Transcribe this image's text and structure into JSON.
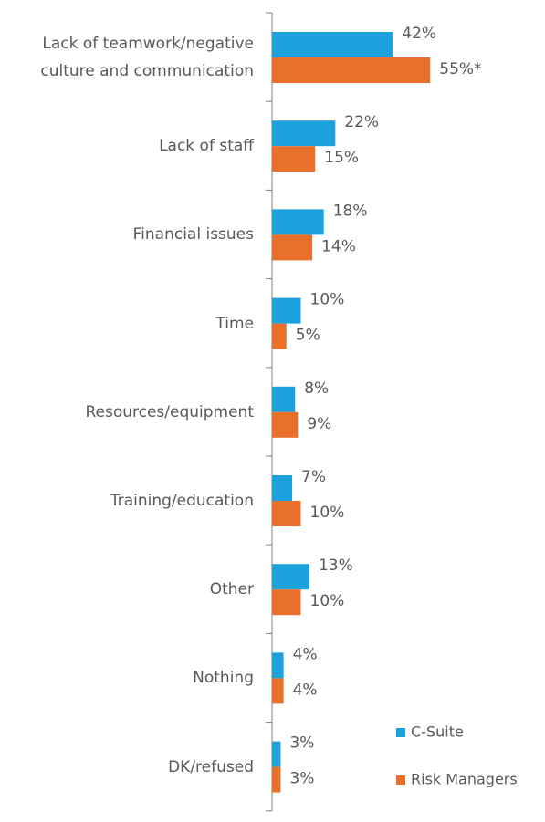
{
  "chart_data": {
    "type": "bar",
    "orientation": "horizontal",
    "categories": [
      "Lack of teamwork/negative\nculture and communication",
      "Lack of staff",
      "Financial issues",
      "Time",
      "Resources/equipment",
      "Training/education",
      "Other",
      "Nothing",
      "DK/refused"
    ],
    "series": [
      {
        "name": "C-Suite",
        "color": "#1ba1dc",
        "values": [
          42,
          22,
          18,
          10,
          8,
          7,
          13,
          4,
          3
        ],
        "value_labels": [
          "42%",
          "22%",
          "18%",
          "10%",
          "8%",
          "7%",
          "13%",
          "4%",
          "3%"
        ]
      },
      {
        "name": "Risk Managers",
        "color": "#e8702a",
        "values": [
          55,
          15,
          14,
          5,
          9,
          10,
          10,
          4,
          3
        ],
        "value_labels": [
          "55%*",
          "15%",
          "14%",
          "5%",
          "9%",
          "10%",
          "10%",
          "4%",
          "3%"
        ]
      }
    ],
    "legend": "bottom-right"
  }
}
